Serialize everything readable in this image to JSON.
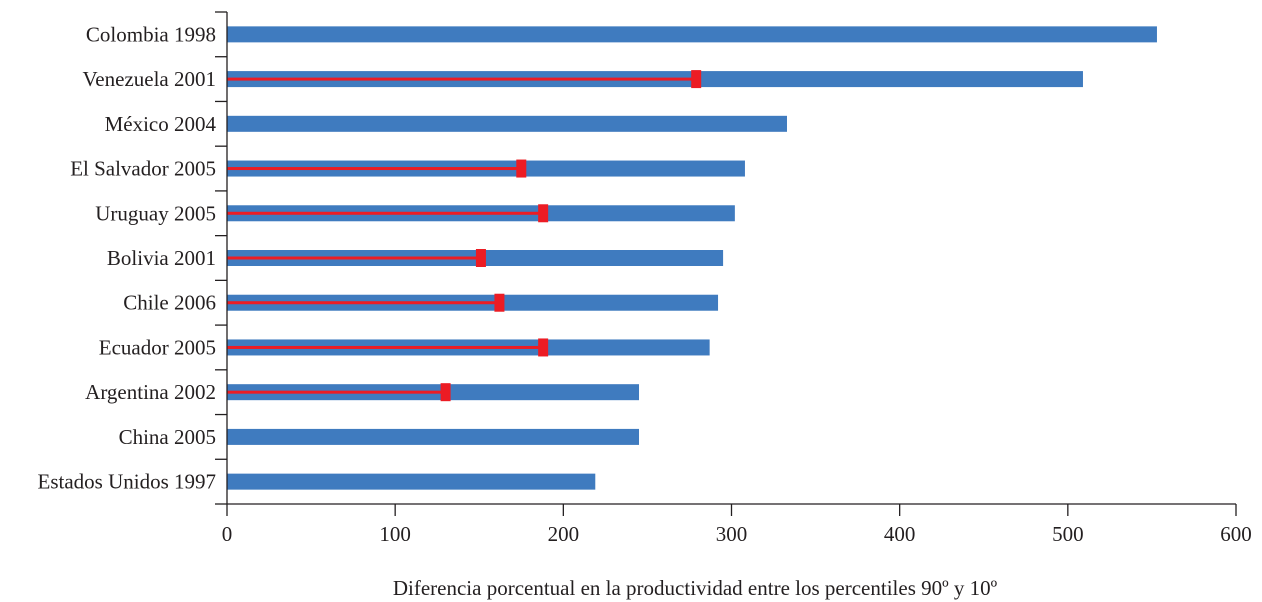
{
  "chart_data": {
    "type": "bar",
    "orientation": "horizontal",
    "categories": [
      "Colombia 1998",
      "Venezuela 2001",
      "México 2004",
      "El Salvador 2005",
      "Uruguay 2005",
      "Bolivia 2001",
      "Chile 2006",
      "Ecuador 2005",
      "Argentina 2002",
      "China 2005",
      "Estados Unidos 1997"
    ],
    "series": [
      {
        "values": [
          553,
          509,
          333,
          308,
          302,
          295,
          292,
          287,
          245,
          245,
          219
        ]
      },
      {
        "values": [
          null,
          279,
          null,
          175,
          188,
          151,
          162,
          188,
          130,
          null,
          null
        ]
      }
    ],
    "xlabel": "Diferencia porcentual en la productividad entre los percentiles 90º y 10º",
    "ylabel": "",
    "title": "",
    "xlim": [
      0,
      600
    ],
    "xticks": [
      0,
      100,
      200,
      300,
      400,
      500,
      600
    ],
    "grid": false,
    "colors": {
      "bar": "#3f7bbf",
      "marker": "#ec1c24",
      "axis": "#231f20"
    }
  }
}
